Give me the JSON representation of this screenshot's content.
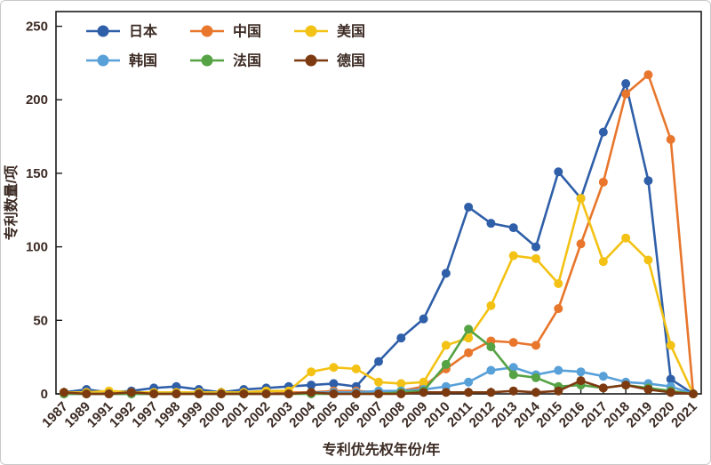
{
  "chart_data": {
    "type": "line",
    "xlabel": "专利优先权年份/年",
    "ylabel": "专利数量/项",
    "ylim": [
      0,
      260
    ],
    "yticks": [
      0,
      50,
      100,
      150,
      200,
      250
    ],
    "grid": false,
    "legend_position": "top-left",
    "categories": [
      "1987",
      "1989",
      "1991",
      "1992",
      "1997",
      "1998",
      "1999",
      "2000",
      "2001",
      "2002",
      "2003",
      "2004",
      "2005",
      "2006",
      "2007",
      "2008",
      "2009",
      "2010",
      "2011",
      "2012",
      "2013",
      "2014",
      "2015",
      "2016",
      "2017",
      "2018",
      "2019",
      "2020",
      "2021"
    ],
    "series": [
      {
        "name": "日本",
        "color": "#2f5fa8",
        "values": [
          1,
          3,
          1,
          2,
          4,
          5,
          3,
          1,
          3,
          4,
          5,
          6,
          7,
          5,
          22,
          38,
          51,
          82,
          127,
          116,
          113,
          100,
          151,
          133,
          178,
          211,
          145,
          10,
          0
        ]
      },
      {
        "name": "中国",
        "color": "#e8762c",
        "values": [
          0,
          0,
          0,
          0,
          0,
          0,
          0,
          0,
          0,
          0,
          1,
          1,
          2,
          2,
          1,
          2,
          5,
          17,
          28,
          36,
          35,
          33,
          58,
          102,
          144,
          204,
          217,
          173,
          0
        ]
      },
      {
        "name": "美国",
        "color": "#f3c215",
        "values": [
          1,
          1,
          2,
          1,
          1,
          1,
          1,
          1,
          1,
          2,
          2,
          15,
          18,
          17,
          8,
          7,
          8,
          33,
          38,
          60,
          94,
          92,
          75,
          133,
          90,
          106,
          91,
          33,
          0
        ]
      },
      {
        "name": "韩国",
        "color": "#58a0d8",
        "values": [
          0,
          0,
          0,
          0,
          0,
          0,
          0,
          0,
          0,
          0,
          0,
          1,
          1,
          1,
          2,
          2,
          3,
          5,
          8,
          16,
          18,
          13,
          16,
          15,
          12,
          8,
          7,
          5,
          0
        ]
      },
      {
        "name": "法国",
        "color": "#56a345",
        "values": [
          0,
          0,
          0,
          0,
          0,
          0,
          0,
          0,
          0,
          0,
          0,
          0,
          0,
          0,
          0,
          1,
          2,
          20,
          44,
          32,
          13,
          11,
          5,
          6,
          4,
          6,
          4,
          2,
          0
        ]
      },
      {
        "name": "德国",
        "color": "#7d3a10",
        "values": [
          1,
          0,
          0,
          1,
          0,
          0,
          0,
          0,
          0,
          0,
          0,
          1,
          0,
          0,
          0,
          0,
          1,
          1,
          1,
          1,
          2,
          1,
          2,
          9,
          4,
          6,
          3,
          1,
          0
        ]
      }
    ]
  },
  "styles": {
    "text_color": "#3c2b24",
    "axis_color": "#1a1a1a",
    "background": "#ffffff"
  }
}
